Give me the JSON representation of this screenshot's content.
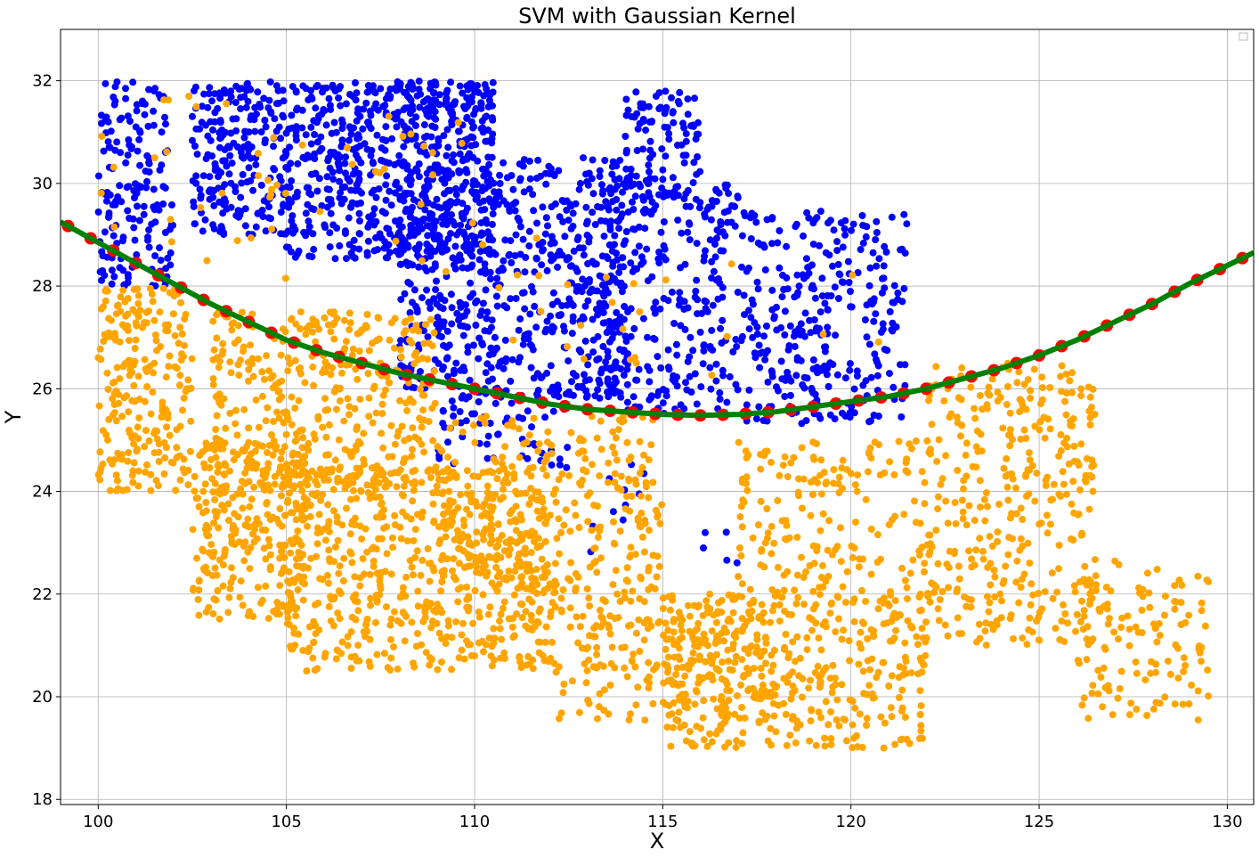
{
  "chart_data": {
    "type": "scatter",
    "title": "SVM with Gaussian Kernel",
    "xlabel": "X",
    "ylabel": "Y",
    "xlim": [
      99.0,
      130.7
    ],
    "ylim": [
      17.9,
      33.0
    ],
    "xticks": [
      100,
      105,
      110,
      115,
      120,
      125,
      130
    ],
    "yticks": [
      18,
      20,
      22,
      24,
      26,
      28,
      30,
      32
    ],
    "grid": true,
    "legend": "top-right (empty)",
    "colors": {
      "class_a": "#0000ff",
      "class_b": "#ffa500",
      "boundary_line": "#008000",
      "boundary_points": "#ff0000"
    },
    "series": [
      {
        "marker": "point",
        "color": "#0000ff",
        "regions": [
          {
            "x": [
              100.0,
              102.0
            ],
            "y": [
              28.0,
              32.0
            ],
            "density": 0.7
          },
          {
            "x": [
              102.5,
              105.0
            ],
            "y": [
              29.0,
              32.0
            ],
            "density": 1.0
          },
          {
            "x": [
              105.0,
              110.5
            ],
            "y": [
              28.5,
              32.0
            ],
            "density": 1.0
          },
          {
            "x": [
              108.0,
              110.5
            ],
            "y": [
              26.0,
              32.0
            ],
            "density": 0.8
          },
          {
            "x": [
              110.5,
              114.0
            ],
            "y": [
              25.8,
              30.5
            ],
            "density": 0.8
          },
          {
            "x": [
              114.0,
              116.0
            ],
            "y": [
              29.5,
              31.8
            ],
            "density": 0.8
          },
          {
            "x": [
              113.5,
              117.0
            ],
            "y": [
              25.5,
              30.0
            ],
            "density": 0.6
          },
          {
            "x": [
              117.0,
              121.5
            ],
            "y": [
              25.3,
              29.5
            ],
            "density": 0.55
          },
          {
            "x": [
              109.0,
              112.5
            ],
            "y": [
              24.4,
              26.0
            ],
            "density": 0.4
          },
          {
            "x": [
              113.0,
              114.5
            ],
            "y": [
              22.5,
              24.8
            ],
            "density": 0.1
          },
          {
            "x": [
              116.0,
              117.0
            ],
            "y": [
              22.5,
              23.3
            ],
            "density": 0.2
          }
        ]
      },
      {
        "marker": "point",
        "color": "#ffa500",
        "regions": [
          {
            "x": [
              100.0,
              102.5
            ],
            "y": [
              24.0,
              28.0
            ],
            "density": 0.9
          },
          {
            "x": [
              102.5,
              105.5
            ],
            "y": [
              21.5,
              25.0
            ],
            "density": 1.0
          },
          {
            "x": [
              103.0,
              109.0
            ],
            "y": [
              24.0,
              27.5
            ],
            "density": 0.75
          },
          {
            "x": [
              105.0,
              112.0
            ],
            "y": [
              20.5,
              24.5
            ],
            "density": 0.8
          },
          {
            "x": [
              109.0,
              115.0
            ],
            "y": [
              22.0,
              25.5
            ],
            "density": 0.6
          },
          {
            "x": [
              112.0,
              118.0
            ],
            "y": [
              19.5,
              22.0
            ],
            "density": 0.6
          },
          {
            "x": [
              115.0,
              122.0
            ],
            "y": [
              19.0,
              22.0
            ],
            "density": 0.75
          },
          {
            "x": [
              117.0,
              122.0
            ],
            "y": [
              22.0,
              25.0
            ],
            "density": 0.45
          },
          {
            "x": [
              122.0,
              126.5
            ],
            "y": [
              21.0,
              26.5
            ],
            "density": 0.55
          },
          {
            "x": [
              126.0,
              129.5
            ],
            "y": [
              19.5,
              22.7
            ],
            "density": 0.45
          },
          {
            "x": [
              100.0,
              110.0
            ],
            "y": [
              28.0,
              31.8
            ],
            "density": 0.05
          },
          {
            "x": [
              110.0,
              121.0
            ],
            "y": [
              26.0,
              29.0
            ],
            "density": 0.03
          }
        ]
      }
    ],
    "decision_boundary": {
      "x": [
        99.0,
        100.0,
        101.0,
        102.0,
        103.0,
        104.0,
        105.0,
        106.0,
        107.0,
        108.0,
        109.0,
        110.0,
        111.0,
        112.0,
        113.0,
        114.0,
        115.0,
        116.0,
        117.0,
        118.0,
        119.0,
        120.0,
        121.0,
        122.0,
        123.0,
        124.0,
        125.0,
        126.0,
        127.0,
        128.0,
        129.0,
        130.0,
        130.7
      ],
      "y": [
        29.25,
        28.85,
        28.45,
        28.05,
        27.65,
        27.3,
        26.95,
        26.7,
        26.5,
        26.3,
        26.15,
        26.0,
        25.85,
        25.7,
        25.6,
        25.55,
        25.5,
        25.48,
        25.5,
        25.55,
        25.65,
        25.75,
        25.85,
        26.0,
        26.2,
        26.4,
        26.65,
        26.95,
        27.3,
        27.65,
        28.05,
        28.4,
        28.65
      ]
    }
  }
}
